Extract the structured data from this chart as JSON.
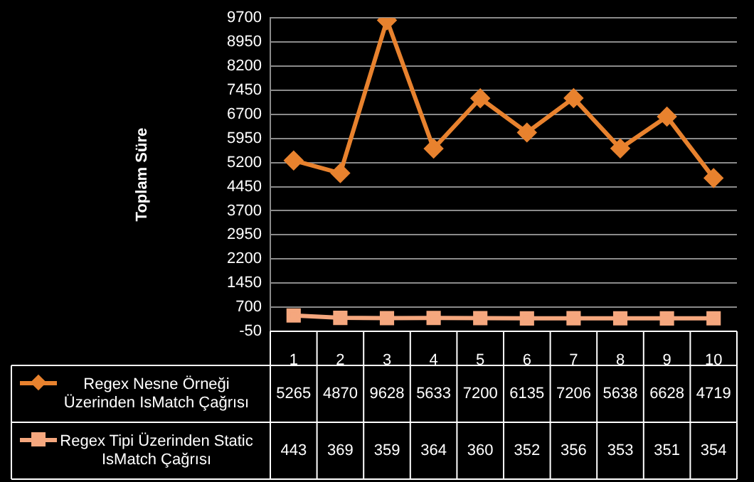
{
  "chart_data": {
    "type": "line",
    "ylabel": "Toplam Süre",
    "categories": [
      "1",
      "2",
      "3",
      "4",
      "5",
      "6",
      "7",
      "8",
      "9",
      "10"
    ],
    "series": [
      {
        "name": "Regex Nesne Örneği Üzerinden IsMatch Çağrısı",
        "color": "#e8822e",
        "marker": "diamond",
        "values": [
          5265,
          4870,
          9628,
          5633,
          7200,
          6135,
          7206,
          5638,
          6628,
          4719
        ]
      },
      {
        "name": "Regex Tipi Üzerinden Static IsMatch Çağrısı",
        "color": "#f5a77e",
        "marker": "square",
        "values": [
          443,
          369,
          359,
          364,
          360,
          352,
          356,
          353,
          351,
          354
        ]
      }
    ],
    "ylim": [
      -50,
      9700
    ],
    "yticks": [
      -50,
      700,
      1450,
      2200,
      2950,
      3700,
      4450,
      5200,
      5950,
      6700,
      7450,
      8200,
      8950,
      9700
    ],
    "grid": "y",
    "legend": "bottom",
    "data_labels": true
  }
}
